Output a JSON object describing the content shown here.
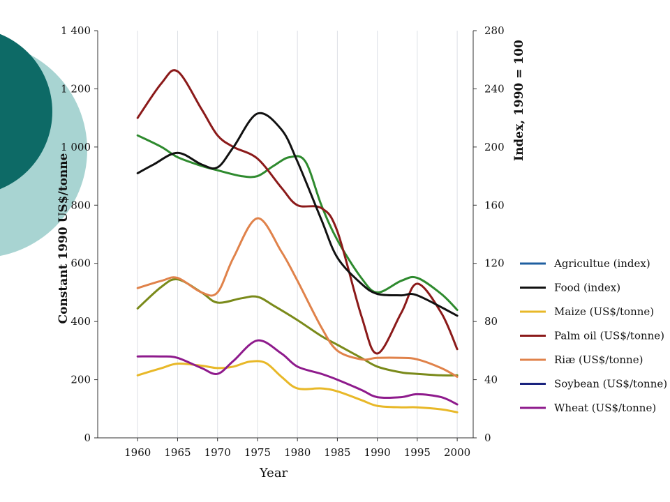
{
  "chart_data": {
    "type": "line",
    "title": "",
    "xlabel": "Year",
    "ylabel_left": "Constant 1990 US$/tonne",
    "ylabel_right": "Index, 1990 = 100",
    "xlim": [
      1955,
      2002
    ],
    "ylim_left": [
      0,
      1400
    ],
    "ylim_right": [
      0,
      280
    ],
    "x_ticks": [
      "1960",
      "1965",
      "1970",
      "1975",
      "1980",
      "1985",
      "1990",
      "1995",
      "2000"
    ],
    "y_ticks_left": [
      "0",
      "200",
      "400",
      "600",
      "800",
      "1 000",
      "1 200",
      "1 400"
    ],
    "y_ticks_right": [
      "0",
      "40",
      "80",
      "120",
      "160",
      "200",
      "240",
      "280"
    ],
    "grid": "vertical",
    "legend_position": "right",
    "series": [
      {
        "name": "Agricultue (index)",
        "color": "#1f5fa0",
        "axis": "right",
        "x": [],
        "y": []
      },
      {
        "name": "Food (index)",
        "color": "#111111",
        "axis": "right",
        "x": [
          1960,
          1962,
          1965,
          1968,
          1970,
          1972,
          1975,
          1978,
          1980,
          1983,
          1985,
          1988,
          1990,
          1993,
          1995,
          2000
        ],
        "y": [
          182,
          188,
          196,
          188,
          186,
          200,
          223,
          212,
          190,
          150,
          124,
          106,
          99,
          98,
          98,
          84
        ]
      },
      {
        "name": "Maize (US$/tonne)",
        "color": "#e8b828",
        "axis": "left",
        "x": [
          1960,
          1963,
          1965,
          1968,
          1970,
          1972,
          1974,
          1976,
          1978,
          1980,
          1983,
          1985,
          1988,
          1990,
          1993,
          1995,
          1998,
          2000
        ],
        "y": [
          215,
          240,
          255,
          248,
          240,
          245,
          262,
          258,
          210,
          170,
          170,
          160,
          130,
          110,
          105,
          105,
          98,
          88
        ]
      },
      {
        "name": "Palm oil (US$/tonne)",
        "color": "#8b1a1a",
        "axis": "left",
        "x": [
          1960,
          1963,
          1965,
          1968,
          1970,
          1972,
          1975,
          1978,
          1980,
          1983,
          1985,
          1988,
          1990,
          1993,
          1995,
          1998,
          2000
        ],
        "y": [
          1100,
          1220,
          1260,
          1130,
          1040,
          1000,
          960,
          860,
          800,
          790,
          710,
          420,
          290,
          430,
          530,
          430,
          305
        ]
      },
      {
        "name": "Riæ (US$/tonne)",
        "color": "#e0824a",
        "axis": "left",
        "x": [
          1960,
          1963,
          1965,
          1968,
          1970,
          1972,
          1975,
          1978,
          1980,
          1983,
          1985,
          1988,
          1990,
          1993,
          1995,
          1998,
          2000
        ],
        "y": [
          515,
          540,
          550,
          500,
          500,
          620,
          755,
          640,
          540,
          380,
          300,
          270,
          275,
          275,
          270,
          240,
          210
        ]
      },
      {
        "name": "Soybean (US$/tonne)",
        "color": "#1a237e",
        "axis": "left",
        "x": [],
        "y": []
      },
      {
        "name": "Wheat (US$/tonne)",
        "color": "#8e1a8c",
        "axis": "left",
        "x": [
          1960,
          1963,
          1965,
          1968,
          1970,
          1972,
          1975,
          1978,
          1980,
          1983,
          1985,
          1988,
          1990,
          1993,
          1995,
          1998,
          2000
        ],
        "y": [
          280,
          280,
          275,
          240,
          220,
          265,
          335,
          290,
          245,
          220,
          200,
          165,
          140,
          140,
          150,
          140,
          115
        ]
      },
      {
        "name": "",
        "color": "#2e8a2e",
        "axis": "left",
        "x": [
          1960,
          1963,
          1965,
          1968,
          1970,
          1973,
          1975,
          1977,
          1979,
          1981,
          1983,
          1985,
          1988,
          1990,
          1993,
          1995,
          1998,
          2000
        ],
        "y": [
          1040,
          1000,
          965,
          935,
          920,
          900,
          900,
          935,
          965,
          950,
          800,
          680,
          550,
          500,
          540,
          550,
          495,
          440
        ]
      },
      {
        "name": "",
        "color": "#7a8a1a",
        "axis": "left",
        "x": [
          1960,
          1963,
          1965,
          1968,
          1970,
          1973,
          1975,
          1977,
          1980,
          1983,
          1985,
          1988,
          1990,
          1993,
          1995,
          1998,
          2000
        ],
        "y": [
          445,
          520,
          545,
          500,
          465,
          480,
          485,
          455,
          405,
          350,
          320,
          275,
          245,
          225,
          220,
          215,
          215
        ]
      }
    ]
  }
}
